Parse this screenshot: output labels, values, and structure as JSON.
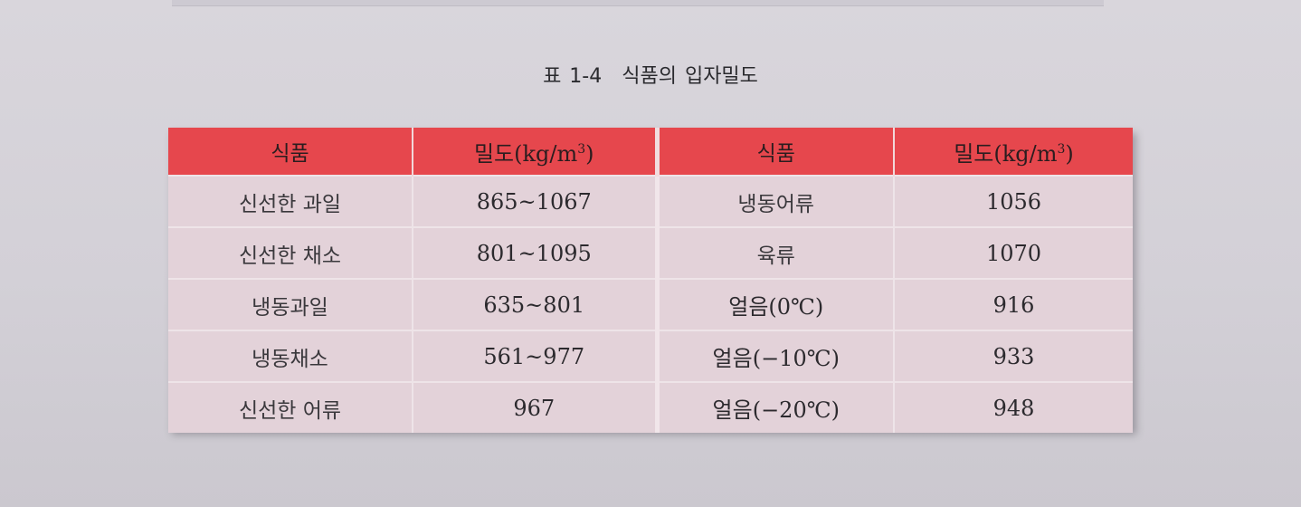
{
  "caption": {
    "label": "표 1-4",
    "title": "식품의 입자밀도"
  },
  "table": {
    "headers": {
      "food_left": "식품",
      "density_left_prefix": "밀도(kg/m",
      "density_left_sup": "3",
      "density_left_suffix": ")",
      "food_right": "식품",
      "density_right_prefix": "밀도(kg/m",
      "density_right_sup": "3",
      "density_right_suffix": ")"
    },
    "rows": [
      {
        "food_left": "신선한 과일",
        "density_left": "865~1067",
        "food_right": "냉동어류",
        "density_right": "1056"
      },
      {
        "food_left": "신선한 채소",
        "density_left": "801~1095",
        "food_right": "육류",
        "density_right": "1070"
      },
      {
        "food_left": "냉동과일",
        "density_left": "635~801",
        "food_right": "얼음(0℃)",
        "density_right": "916"
      },
      {
        "food_left": "냉동채소",
        "density_left": "561~977",
        "food_right": "얼음(−10℃)",
        "density_right": "933"
      },
      {
        "food_left": "신선한 어류",
        "density_left": "967",
        "food_right": "얼음(−20℃)",
        "density_right": "948"
      }
    ]
  }
}
